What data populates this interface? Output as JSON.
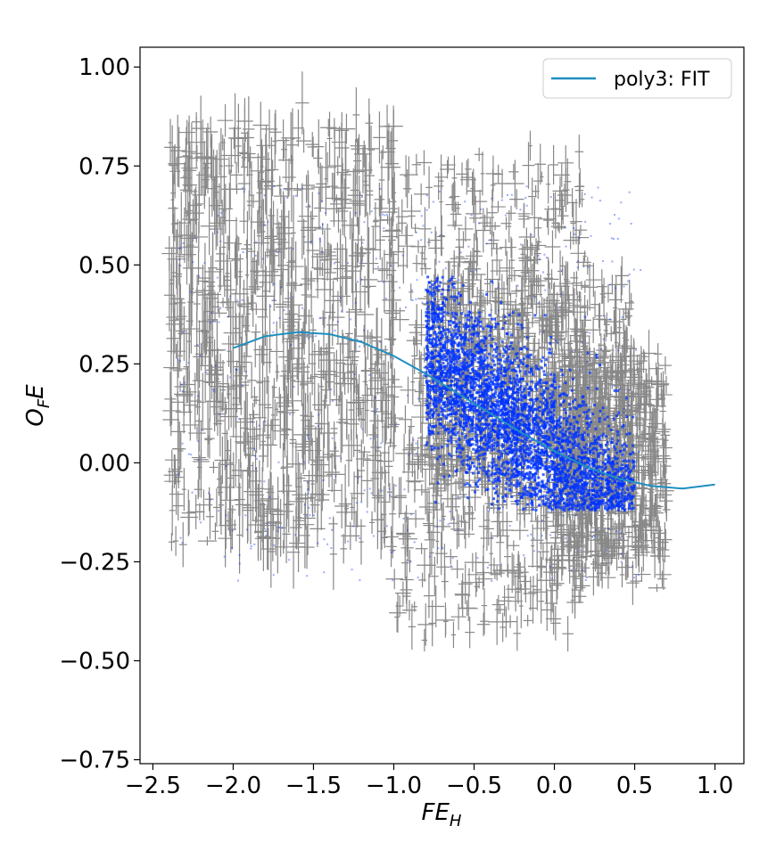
{
  "chart_data": {
    "type": "scatter",
    "title": "",
    "xlabel_base": "FE",
    "xlabel_sub": "H",
    "ylabel_base": "O",
    "ylabel_sub": "F",
    "ylabel_tail": "E",
    "xlim": [
      -2.58,
      1.18
    ],
    "ylim": [
      -0.76,
      1.05
    ],
    "x_ticks": [
      -2.5,
      -2.0,
      -1.5,
      -1.0,
      -0.5,
      0.0,
      0.5,
      1.0
    ],
    "x_tick_labels": [
      "−2.5",
      "−2.0",
      "−1.5",
      "−1.0",
      "−0.5",
      "0.0",
      "0.5",
      "1.0"
    ],
    "y_ticks": [
      -0.75,
      -0.5,
      -0.25,
      0.0,
      0.25,
      0.5,
      0.75,
      1.0
    ],
    "y_tick_labels": [
      "−0.75",
      "−0.50",
      "−0.25",
      "0.00",
      "0.25",
      "0.50",
      "0.75",
      "1.00"
    ],
    "grid": false,
    "legend_position": "top-right",
    "colors": {
      "points": "#0033ff",
      "errorbars": "#888888",
      "fit": "#1f8fc0"
    },
    "series": [
      {
        "name": "poly3: FIT",
        "kind": "line",
        "x": [
          -2.0,
          -1.8,
          -1.6,
          -1.4,
          -1.2,
          -1.0,
          -0.8,
          -0.6,
          -0.4,
          -0.2,
          0.0,
          0.2,
          0.4,
          0.6,
          0.8,
          1.0
        ],
        "y": [
          0.29,
          0.32,
          0.33,
          0.325,
          0.305,
          0.27,
          0.225,
          0.175,
          0.125,
          0.075,
          0.03,
          -0.01,
          -0.04,
          -0.058,
          -0.065,
          -0.055
        ]
      }
    ],
    "scatter_regions": [
      {
        "x": [
          -2.4,
          -1.0
        ],
        "y": [
          -0.2,
          0.85
        ],
        "density": "sparse"
      },
      {
        "x": [
          -1.0,
          0.2
        ],
        "y": [
          -0.4,
          0.75
        ],
        "density": "medium"
      },
      {
        "x": [
          -0.8,
          0.5
        ],
        "y": [
          -0.1,
          0.45
        ],
        "density": "dense"
      },
      {
        "x": [
          0.0,
          0.7
        ],
        "y": [
          -0.25,
          0.25
        ],
        "density": "medium"
      }
    ]
  }
}
